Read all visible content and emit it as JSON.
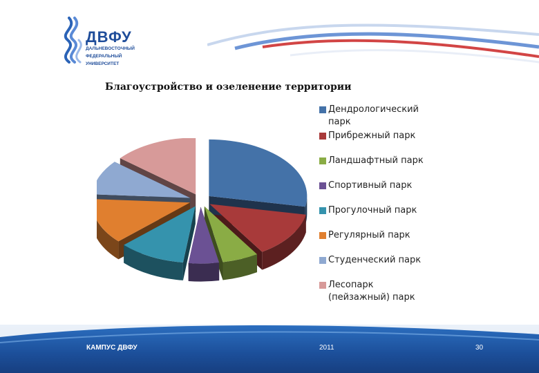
{
  "logo": {
    "big": "ДВФУ",
    "small_lines": [
      "ДАЛЬНЕВОСТОЧНЫЙ",
      "ФЕДЕРАЛЬНЫЙ",
      "УНИВЕРСИТЕТ"
    ]
  },
  "footer": {
    "left": "КАМПУС ДВФУ",
    "center": "2011",
    "page": "30"
  },
  "chart_data": {
    "type": "pie",
    "title": "Благоустройство и озеленение территории",
    "legend_position": "right",
    "categories": [
      "Дендрологический парк",
      "Прибрежный парк",
      "Ландшафтный парк",
      "Спортивный парк",
      "Прогулочный парк",
      "Регулярный парк",
      "Студенческий парк",
      "Лесопарк (пейзажный) парк"
    ],
    "legend_lines": [
      [
        "Дендрологический",
        "парк"
      ],
      [
        "Прибрежный парк"
      ],
      [
        "Ландшафтный парк"
      ],
      [
        "Спортивный парк"
      ],
      [
        "Прогулочный парк"
      ],
      [
        "Регулярный парк"
      ],
      [
        "Студенческий парк"
      ],
      [
        "Лесопарк",
        "(пейзажный) парк"
      ]
    ],
    "values": [
      28,
      13,
      6,
      5,
      11,
      13,
      10,
      14
    ],
    "colors": [
      "#4472a8",
      "#a83a3a",
      "#8aac45",
      "#6b5194",
      "#3593ad",
      "#e07f2f",
      "#8fa9d1",
      "#d79a99"
    ]
  }
}
